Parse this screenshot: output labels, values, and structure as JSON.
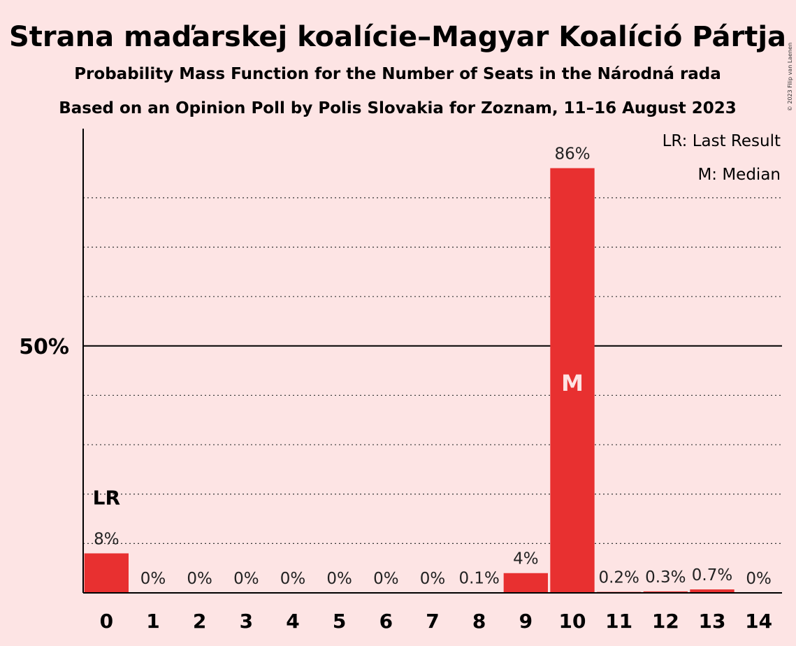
{
  "title": "Strana maďarskej koalície–Magyar Koalíció Pártja",
  "subtitle1": "Probability Mass Function for the Number of Seats in the Národná rada",
  "subtitle2": "Based on an Opinion Poll by Polis Slovakia for Zoznam, 11–16 August 2023",
  "copyright": "© 2023 Filip van Laenen",
  "legend": {
    "last_result": "LR: Last Result",
    "median": "M: Median"
  },
  "colors": {
    "bar": "#e83030",
    "background": "#fde4e4"
  },
  "chart_data": {
    "type": "bar",
    "categories": [
      "0",
      "1",
      "2",
      "3",
      "4",
      "5",
      "6",
      "7",
      "8",
      "9",
      "10",
      "11",
      "12",
      "13",
      "14"
    ],
    "values": [
      8,
      0,
      0,
      0,
      0,
      0,
      0,
      0,
      0.1,
      4,
      86,
      0.2,
      0.3,
      0.7,
      0
    ],
    "labels": [
      "8%",
      "0%",
      "0%",
      "0%",
      "0%",
      "0%",
      "0%",
      "0%",
      "0.1%",
      "4%",
      "86%",
      "0.2%",
      "0.3%",
      "0.7%",
      "0%"
    ],
    "ylim": [
      0,
      94
    ],
    "y_tick_label": "50%",
    "y_tick_value": 50,
    "gridlines": [
      10,
      20,
      30,
      40,
      60,
      70,
      80
    ],
    "last_result_seat": 0,
    "last_result_label": "LR",
    "median_seat": 10,
    "median_label": "M"
  }
}
